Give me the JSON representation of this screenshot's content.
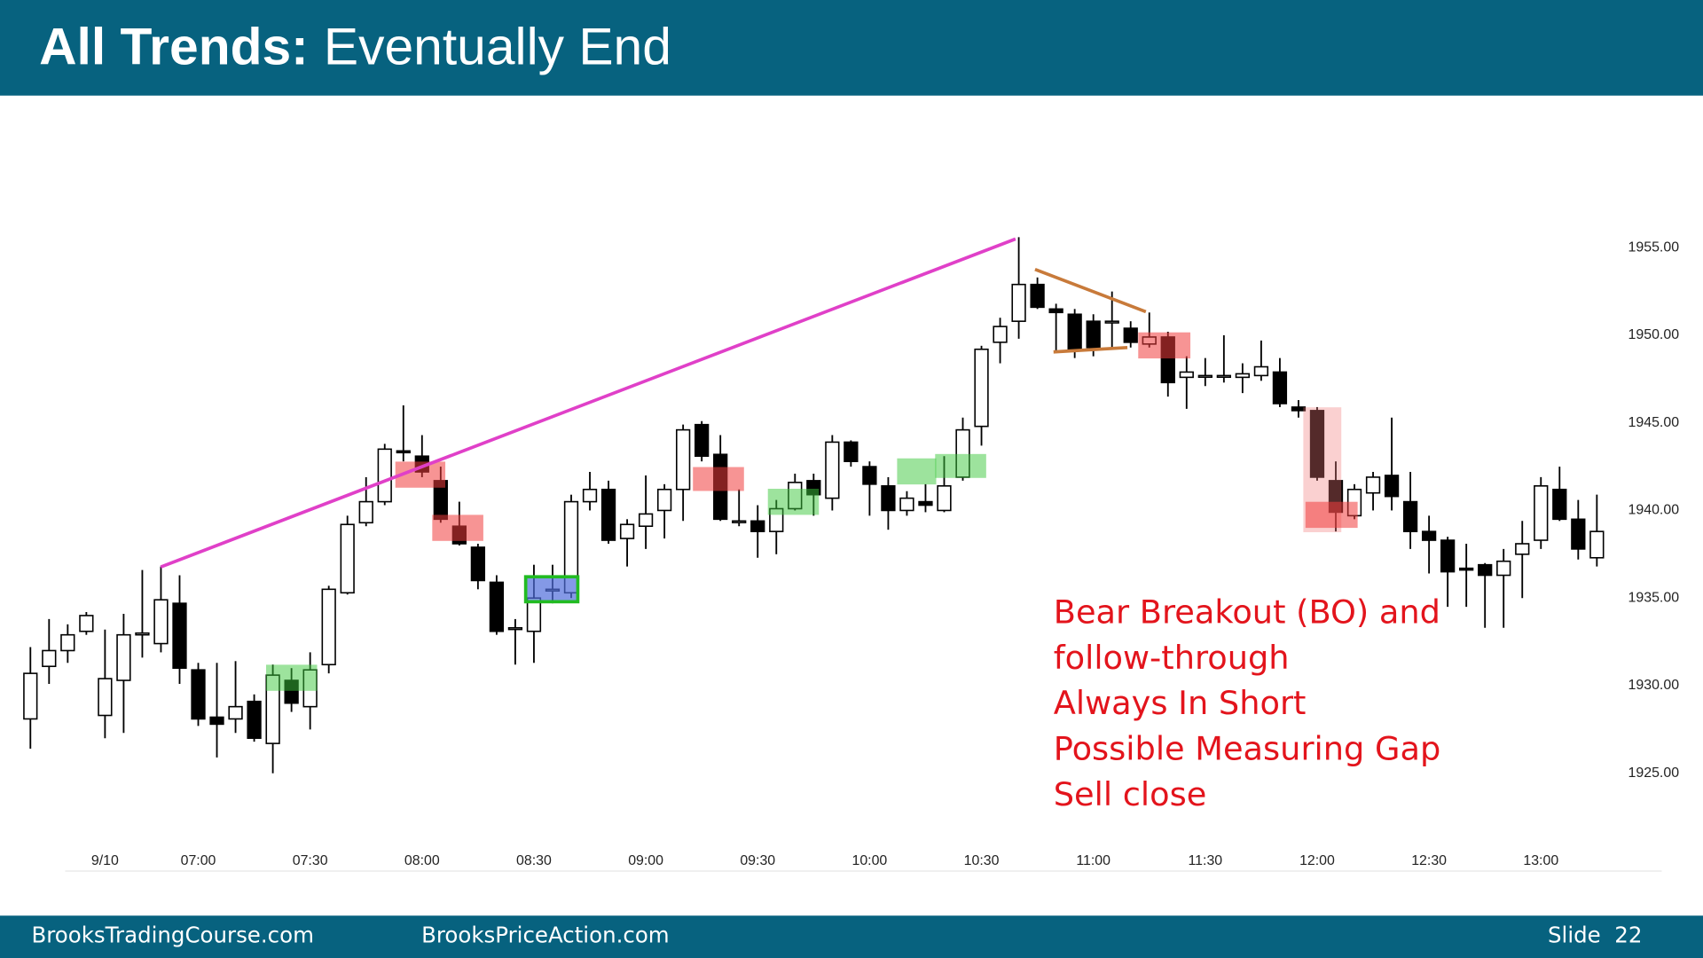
{
  "header": {
    "title_bold": "All Trends:",
    "title_rest": "Eventually End"
  },
  "footer": {
    "left": "BrooksTradingCourse.com",
    "middle": "BrooksPriceAction.com",
    "right": "Slide  22"
  },
  "chart_data": {
    "type": "candlestick",
    "annotation": [
      "Bear Breakout (BO) and",
      "follow-through",
      "Always In Short",
      "Possible Measuring Gap",
      "Sell close"
    ],
    "categories": [
      null,
      null,
      null,
      null,
      "9/10",
      null,
      null,
      null,
      null,
      "07:00",
      null,
      null,
      null,
      null,
      null,
      "07:30",
      null,
      null,
      null,
      null,
      null,
      "08:00",
      null,
      null,
      null,
      null,
      null,
      "08:30",
      null,
      null,
      null,
      null,
      null,
      "09:00",
      null,
      null,
      null,
      null,
      null,
      "09:30",
      null,
      null,
      null,
      null,
      null,
      "10:00",
      null,
      null,
      null,
      null,
      null,
      "10:30",
      null,
      null,
      null,
      null,
      null,
      "11:00",
      null,
      null,
      null,
      null,
      null,
      "11:30",
      null,
      null,
      null,
      null,
      null,
      "12:00",
      null,
      null,
      null,
      null,
      null,
      "12:30",
      null,
      null,
      null,
      null,
      null,
      "13:00",
      null,
      null,
      null
    ],
    "open": [
      1928.1,
      1931.1,
      1932.0,
      1933.1,
      1928.3,
      1930.3,
      1932.9,
      1932.4,
      1934.7,
      1930.9,
      1928.2,
      1928.1,
      1929.1,
      1926.7,
      1930.3,
      1928.8,
      1931.2,
      1935.3,
      1939.3,
      1940.5,
      1943.4,
      1943.1,
      1941.7,
      1939.1,
      1937.9,
      1935.9,
      1933.3,
      1933.1,
      1935.5,
      1935.3,
      1940.5,
      1941.2,
      1938.4,
      1939.1,
      1940.0,
      1941.2,
      1944.9,
      1943.2,
      1939.4,
      1939.4,
      1938.8,
      1940.1,
      1941.7,
      1940.7,
      1943.9,
      1942.5,
      1941.4,
      1940.0,
      1940.5,
      1940.0,
      1941.9,
      1944.8,
      1949.6,
      1950.8,
      1952.9,
      1951.5,
      1951.2,
      1950.8,
      1950.8,
      1950.4,
      1949.5,
      1949.9,
      1947.6,
      1947.7,
      1947.7,
      1947.6,
      1947.7,
      1947.9,
      1945.9,
      1945.7,
      1941.7,
      1939.7,
      1941.0,
      1942.0,
      1940.5,
      1938.8,
      1938.3,
      1936.7,
      1936.9,
      1936.3,
      1937.5,
      1938.3,
      1941.2,
      1939.5,
      1937.3
    ],
    "high": [
      1932.2,
      1933.8,
      1933.5,
      1934.2,
      1933.2,
      1934.1,
      1936.6,
      1936.8,
      1936.3,
      1931.3,
      1931.3,
      1931.4,
      1929.5,
      1931.2,
      1931.0,
      1931.9,
      1935.7,
      1939.7,
      1941.9,
      1943.8,
      1946.0,
      1944.3,
      1942.5,
      1940.5,
      1938.1,
      1936.3,
      1933.8,
      1936.9,
      1936.9,
      1940.9,
      1942.2,
      1941.7,
      1939.5,
      1942.0,
      1941.5,
      1944.9,
      1945.1,
      1944.3,
      1941.2,
      1940.3,
      1940.6,
      1942.1,
      1942.1,
      1944.3,
      1944.0,
      1942.8,
      1941.9,
      1941.1,
      1941.5,
      1943.1,
      1945.3,
      1949.4,
      1951.0,
      1955.6,
      1953.3,
      1951.8,
      1951.5,
      1951.2,
      1952.5,
      1950.8,
      1951.3,
      1950.2,
      1948.8,
      1948.7,
      1950.0,
      1948.4,
      1949.7,
      1948.7,
      1946.3,
      1945.9,
      1942.8,
      1941.5,
      1942.2,
      1945.3,
      1942.2,
      1939.7,
      1938.5,
      1938.1,
      1937.0,
      1937.8,
      1939.4,
      1941.9,
      1942.5,
      1940.6,
      1940.9
    ],
    "low": [
      1926.4,
      1930.1,
      1931.3,
      1932.9,
      1927.0,
      1927.3,
      1931.6,
      1931.9,
      1930.1,
      1927.7,
      1925.9,
      1927.3,
      1926.8,
      1925.0,
      1928.5,
      1927.5,
      1930.7,
      1935.2,
      1939.1,
      1940.3,
      1942.8,
      1941.9,
      1939.3,
      1938.0,
      1935.5,
      1932.9,
      1931.2,
      1931.3,
      1934.7,
      1935.0,
      1940.0,
      1938.1,
      1936.8,
      1937.8,
      1938.4,
      1939.4,
      1942.8,
      1939.4,
      1939.1,
      1937.3,
      1937.5,
      1940.0,
      1939.7,
      1940.0,
      1942.5,
      1939.7,
      1938.9,
      1939.7,
      1939.9,
      1939.9,
      1941.7,
      1943.7,
      1948.4,
      1949.8,
      1951.5,
      1949.0,
      1948.7,
      1948.8,
      1949.2,
      1949.3,
      1949.3,
      1946.5,
      1945.8,
      1947.1,
      1947.3,
      1946.7,
      1947.4,
      1945.9,
      1945.3,
      1941.7,
      1938.8,
      1939.5,
      1940.0,
      1940.0,
      1937.8,
      1936.4,
      1934.5,
      1934.5,
      1933.3,
      1933.3,
      1935.0,
      1937.8,
      1939.4,
      1937.2,
      1936.8
    ],
    "close": [
      1930.7,
      1932.0,
      1932.9,
      1934.0,
      1930.4,
      1932.9,
      1933.0,
      1934.9,
      1931.0,
      1928.1,
      1927.8,
      1928.8,
      1927.0,
      1930.6,
      1929.0,
      1930.9,
      1935.5,
      1939.2,
      1940.5,
      1943.5,
      1943.3,
      1942.2,
      1939.5,
      1938.1,
      1936.0,
      1933.1,
      1933.3,
      1935.0,
      1935.5,
      1940.5,
      1941.2,
      1938.3,
      1939.2,
      1939.8,
      1941.2,
      1944.6,
      1943.1,
      1939.5,
      1939.4,
      1938.8,
      1940.1,
      1941.6,
      1940.9,
      1943.9,
      1942.8,
      1941.5,
      1940.0,
      1940.7,
      1940.3,
      1941.4,
      1944.6,
      1949.2,
      1950.5,
      1952.9,
      1951.6,
      1951.3,
      1949.2,
      1949.3,
      1950.8,
      1949.6,
      1949.9,
      1947.3,
      1947.9,
      1947.7,
      1947.7,
      1947.8,
      1948.2,
      1946.1,
      1945.7,
      1941.9,
      1939.9,
      1941.2,
      1941.9,
      1940.8,
      1938.8,
      1938.3,
      1936.5,
      1936.6,
      1936.3,
      1937.1,
      1938.1,
      1941.4,
      1939.5,
      1937.8,
      1938.8
    ],
    "up_color": "#ffffff",
    "down_color": "#000000",
    "ylim": [
      1921,
      1963
    ],
    "yticks": [
      {
        "value": 1925,
        "label": "1925.00"
      },
      {
        "value": 1930,
        "label": "1930.00"
      },
      {
        "value": 1935,
        "label": "1935.00"
      },
      {
        "value": 1940,
        "label": "1940.00"
      },
      {
        "value": 1945,
        "label": "1945.00"
      },
      {
        "value": 1950,
        "label": "1950.00"
      },
      {
        "value": 1955,
        "label": "1955.00"
      }
    ]
  }
}
